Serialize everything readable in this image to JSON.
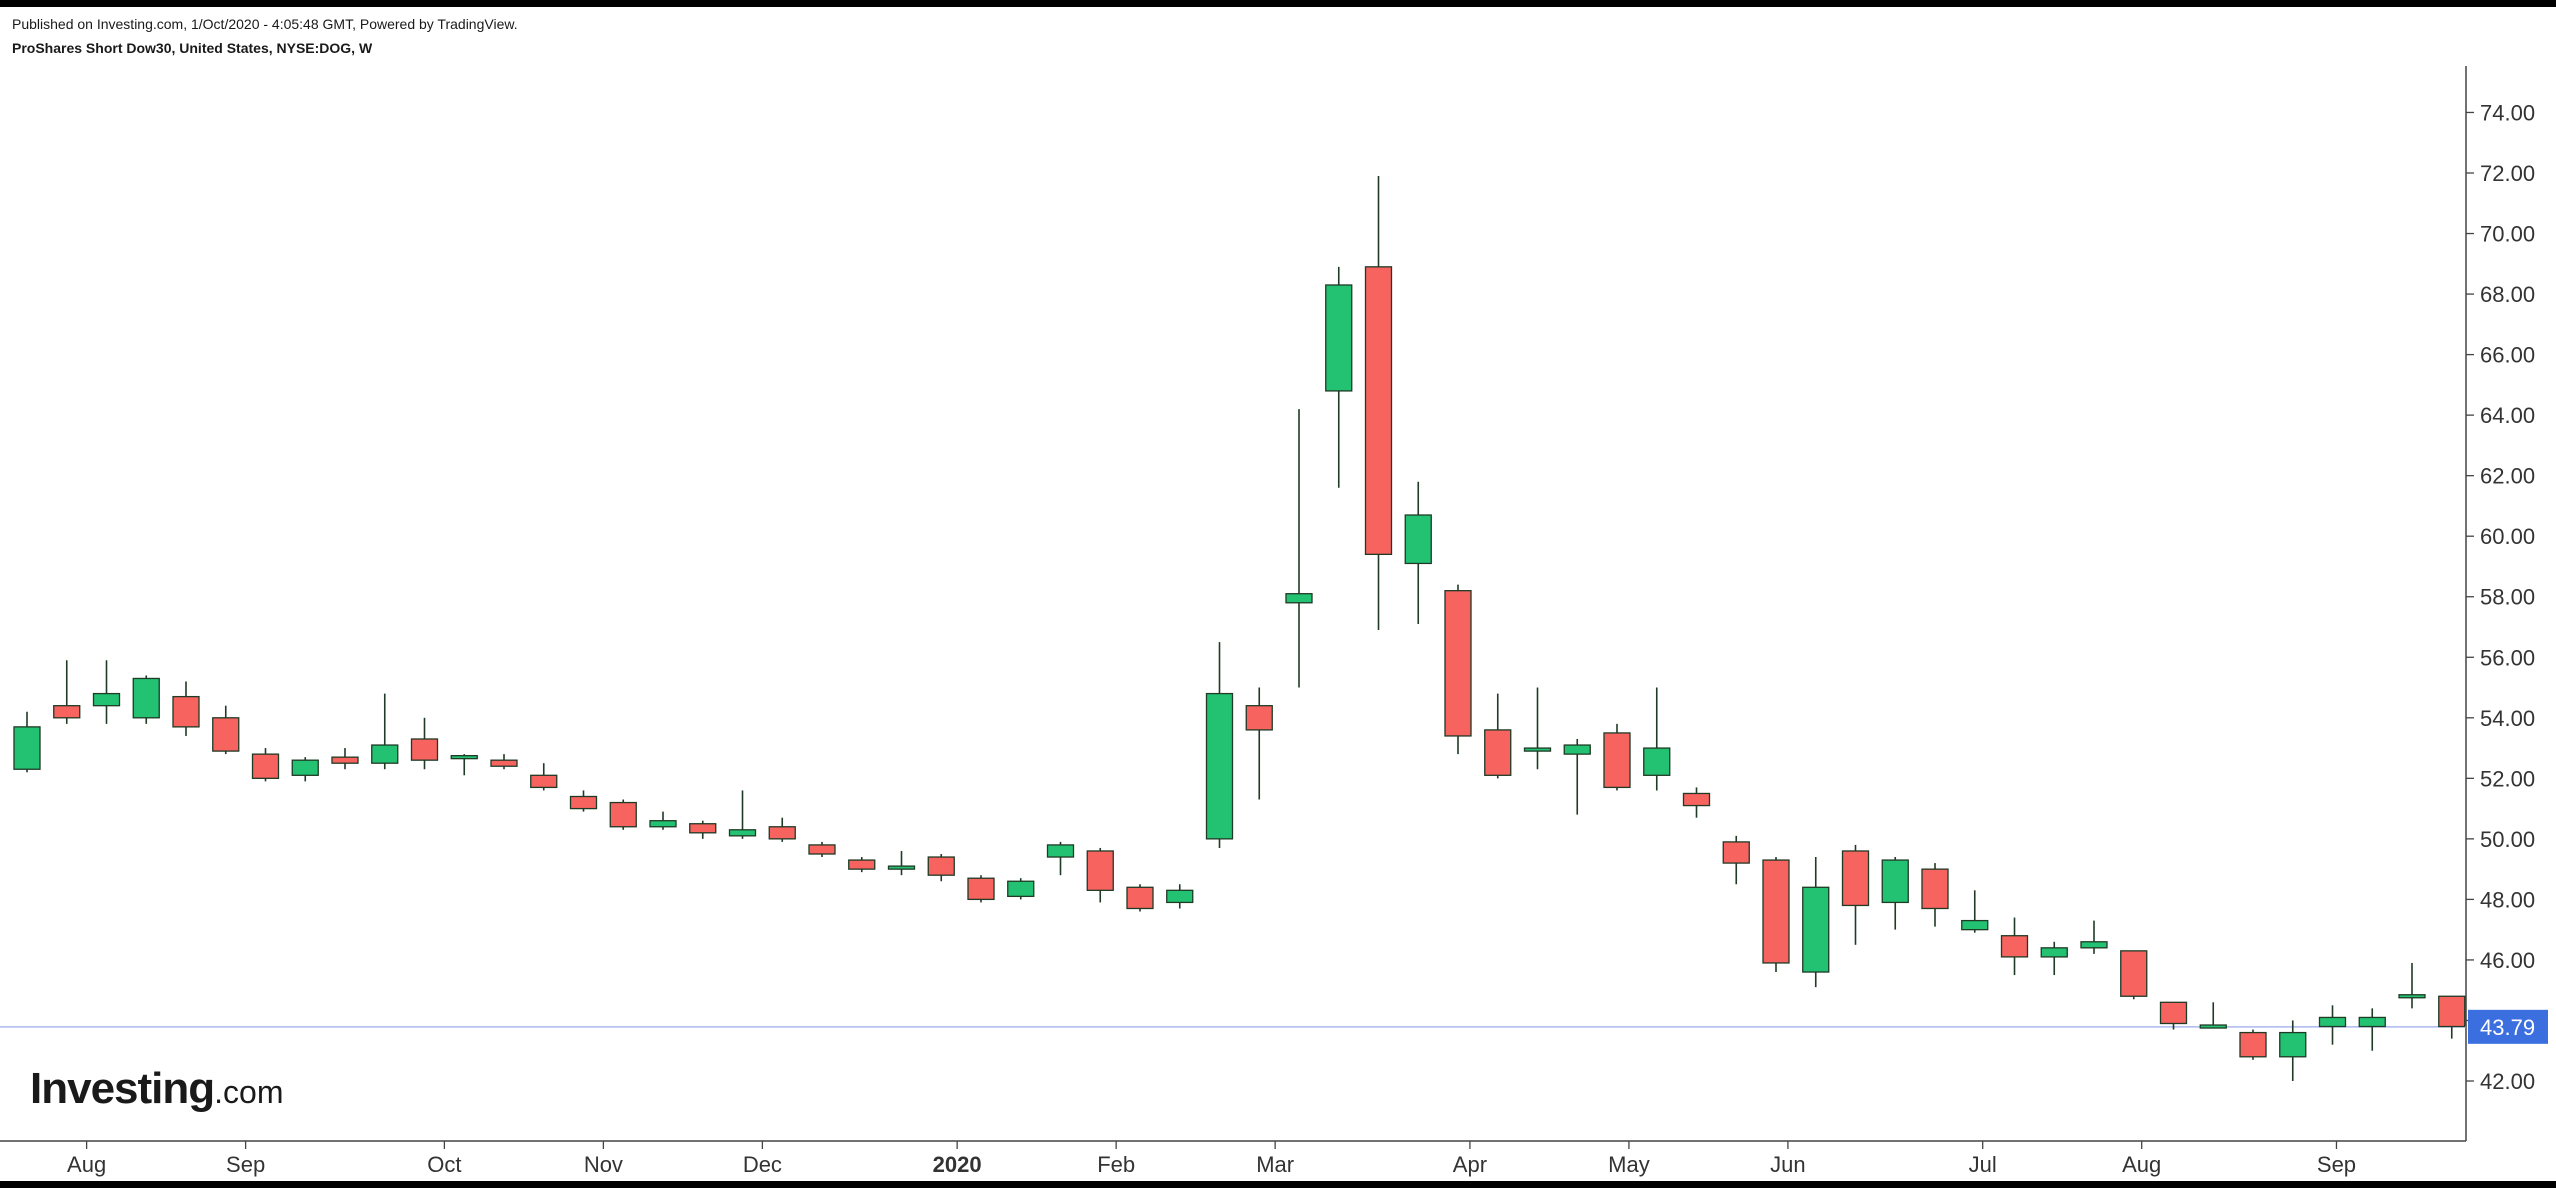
{
  "header": {
    "published": "Published on Investing.com, 1/Oct/2020 - 4:05:48 GMT, Powered by TradingView.",
    "symbol": "ProShares Short Dow30, United States, NYSE:DOG, W"
  },
  "logo": {
    "brand": "Investing",
    "domain": ".com"
  },
  "colors": {
    "up": "#22c272",
    "down": "#f7635f",
    "wick": "#1f3a25",
    "last_price_line": "#aab8f0",
    "last_price_badge": "#3b6fe0"
  },
  "chart_data": {
    "type": "candlestick",
    "title": "ProShares Short Dow30, United States, NYSE:DOG, W",
    "interval": "weekly",
    "ylim": [
      40.5,
      75.5
    ],
    "y_ticks": [
      "74.00",
      "72.00",
      "70.00",
      "68.00",
      "66.00",
      "64.00",
      "62.00",
      "60.00",
      "58.00",
      "56.00",
      "54.00",
      "52.00",
      "50.00",
      "48.00",
      "46.00",
      "44.00",
      "42.00"
    ],
    "x_labels": [
      {
        "label": "Aug",
        "index": 1.5,
        "bold": false
      },
      {
        "label": "Sep",
        "index": 5.5,
        "bold": false
      },
      {
        "label": "Oct",
        "index": 10.5,
        "bold": false
      },
      {
        "label": "Nov",
        "index": 14.5,
        "bold": false
      },
      {
        "label": "Dec",
        "index": 18.5,
        "bold": false
      },
      {
        "label": "2020",
        "index": 23.4,
        "bold": true
      },
      {
        "label": "Feb",
        "index": 27.4,
        "bold": false
      },
      {
        "label": "Mar",
        "index": 31.4,
        "bold": false
      },
      {
        "label": "Apr",
        "index": 36.3,
        "bold": false
      },
      {
        "label": "May",
        "index": 40.3,
        "bold": false
      },
      {
        "label": "Jun",
        "index": 44.3,
        "bold": false
      },
      {
        "label": "Jul",
        "index": 49.2,
        "bold": false
      },
      {
        "label": "Aug",
        "index": 53.2,
        "bold": false
      },
      {
        "label": "Sep",
        "index": 58.1,
        "bold": false
      }
    ],
    "last_price": 43.79,
    "last_price_label": "43.79",
    "grid": false,
    "candles": [
      {
        "o": 52.3,
        "h": 54.2,
        "l": 52.2,
        "c": 53.7
      },
      {
        "o": 54.4,
        "h": 55.9,
        "l": 53.8,
        "c": 54.0
      },
      {
        "o": 54.4,
        "h": 55.9,
        "l": 53.8,
        "c": 54.8
      },
      {
        "o": 54.0,
        "h": 55.4,
        "l": 53.8,
        "c": 55.3
      },
      {
        "o": 54.7,
        "h": 55.2,
        "l": 53.4,
        "c": 53.7
      },
      {
        "o": 54.0,
        "h": 54.4,
        "l": 52.8,
        "c": 52.9
      },
      {
        "o": 52.8,
        "h": 53.0,
        "l": 51.9,
        "c": 52.0
      },
      {
        "o": 52.1,
        "h": 52.7,
        "l": 51.9,
        "c": 52.6
      },
      {
        "o": 52.7,
        "h": 53.0,
        "l": 52.3,
        "c": 52.5
      },
      {
        "o": 52.5,
        "h": 54.8,
        "l": 52.3,
        "c": 53.1
      },
      {
        "o": 53.3,
        "h": 54.0,
        "l": 52.3,
        "c": 52.6
      },
      {
        "o": 52.7,
        "h": 52.8,
        "l": 52.1,
        "c": 52.7
      },
      {
        "o": 52.6,
        "h": 52.8,
        "l": 52.3,
        "c": 52.4
      },
      {
        "o": 52.1,
        "h": 52.5,
        "l": 51.6,
        "c": 51.7
      },
      {
        "o": 51.4,
        "h": 51.6,
        "l": 50.9,
        "c": 51.0
      },
      {
        "o": 51.2,
        "h": 51.3,
        "l": 50.3,
        "c": 50.4
      },
      {
        "o": 50.4,
        "h": 50.9,
        "l": 50.3,
        "c": 50.6
      },
      {
        "o": 50.5,
        "h": 50.6,
        "l": 50.0,
        "c": 50.2
      },
      {
        "o": 50.1,
        "h": 51.6,
        "l": 50.0,
        "c": 50.3
      },
      {
        "o": 50.4,
        "h": 50.7,
        "l": 49.9,
        "c": 50.0
      },
      {
        "o": 49.8,
        "h": 49.9,
        "l": 49.4,
        "c": 49.5
      },
      {
        "o": 49.3,
        "h": 49.4,
        "l": 48.9,
        "c": 49.0
      },
      {
        "o": 49.0,
        "h": 49.6,
        "l": 48.8,
        "c": 49.1
      },
      {
        "o": 49.4,
        "h": 49.5,
        "l": 48.6,
        "c": 48.8
      },
      {
        "o": 48.7,
        "h": 48.8,
        "l": 47.9,
        "c": 48.0
      },
      {
        "o": 48.1,
        "h": 48.7,
        "l": 48.0,
        "c": 48.6
      },
      {
        "o": 49.4,
        "h": 49.9,
        "l": 48.8,
        "c": 49.8
      },
      {
        "o": 49.6,
        "h": 49.7,
        "l": 47.9,
        "c": 48.3
      },
      {
        "o": 48.4,
        "h": 48.5,
        "l": 47.6,
        "c": 47.7
      },
      {
        "o": 47.9,
        "h": 48.5,
        "l": 47.7,
        "c": 48.3
      },
      {
        "o": 50.0,
        "h": 56.5,
        "l": 49.7,
        "c": 54.8
      },
      {
        "o": 54.4,
        "h": 55.0,
        "l": 51.3,
        "c": 53.6
      },
      {
        "o": 57.8,
        "h": 64.2,
        "l": 55.0,
        "c": 58.1
      },
      {
        "o": 64.8,
        "h": 68.9,
        "l": 61.6,
        "c": 68.3
      },
      {
        "o": 68.9,
        "h": 71.9,
        "l": 56.9,
        "c": 59.4
      },
      {
        "o": 59.1,
        "h": 61.8,
        "l": 57.1,
        "c": 60.7
      },
      {
        "o": 58.2,
        "h": 58.4,
        "l": 52.8,
        "c": 53.4
      },
      {
        "o": 53.6,
        "h": 54.8,
        "l": 52.0,
        "c": 52.1
      },
      {
        "o": 52.9,
        "h": 55.0,
        "l": 52.3,
        "c": 53.0
      },
      {
        "o": 52.8,
        "h": 53.3,
        "l": 50.8,
        "c": 53.1
      },
      {
        "o": 53.5,
        "h": 53.8,
        "l": 51.6,
        "c": 51.7
      },
      {
        "o": 52.1,
        "h": 55.0,
        "l": 51.6,
        "c": 53.0
      },
      {
        "o": 51.5,
        "h": 51.7,
        "l": 50.7,
        "c": 51.1
      },
      {
        "o": 49.9,
        "h": 50.1,
        "l": 48.5,
        "c": 49.2
      },
      {
        "o": 49.3,
        "h": 49.4,
        "l": 45.6,
        "c": 45.9
      },
      {
        "o": 45.6,
        "h": 49.4,
        "l": 45.1,
        "c": 48.4
      },
      {
        "o": 49.6,
        "h": 49.8,
        "l": 46.5,
        "c": 47.8
      },
      {
        "o": 47.9,
        "h": 49.4,
        "l": 47.0,
        "c": 49.3
      },
      {
        "o": 49.0,
        "h": 49.2,
        "l": 47.1,
        "c": 47.7
      },
      {
        "o": 47.0,
        "h": 48.3,
        "l": 46.9,
        "c": 47.3
      },
      {
        "o": 46.8,
        "h": 47.4,
        "l": 45.5,
        "c": 46.1
      },
      {
        "o": 46.1,
        "h": 46.6,
        "l": 45.5,
        "c": 46.4
      },
      {
        "o": 46.4,
        "h": 47.3,
        "l": 46.2,
        "c": 46.6
      },
      {
        "o": 46.3,
        "h": 46.3,
        "l": 44.7,
        "c": 44.8
      },
      {
        "o": 44.6,
        "h": 44.6,
        "l": 43.7,
        "c": 43.9
      },
      {
        "o": 43.8,
        "h": 44.6,
        "l": 43.8,
        "c": 43.8
      },
      {
        "o": 43.6,
        "h": 43.7,
        "l": 42.7,
        "c": 42.8
      },
      {
        "o": 42.8,
        "h": 44.0,
        "l": 42.0,
        "c": 43.6
      },
      {
        "o": 43.8,
        "h": 44.5,
        "l": 43.2,
        "c": 44.1
      },
      {
        "o": 43.8,
        "h": 44.4,
        "l": 43.0,
        "c": 44.1
      },
      {
        "o": 44.8,
        "h": 45.9,
        "l": 44.4,
        "c": 44.8
      },
      {
        "o": 44.8,
        "h": 44.8,
        "l": 43.4,
        "c": 43.8
      }
    ]
  }
}
